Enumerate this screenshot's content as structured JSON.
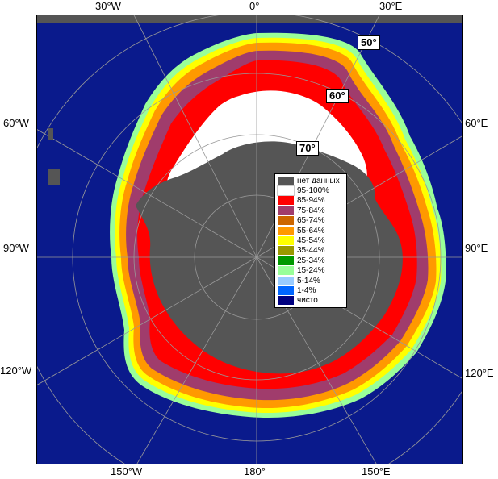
{
  "map": {
    "background_color": "#0a1a8c",
    "land_color": "#555555",
    "frame_fill": "#555555"
  },
  "longitude_labels": {
    "top_left": "30°W",
    "top_center": "0°",
    "top_right": "30°E",
    "left_upper": "60°W",
    "left_mid": "90°W",
    "left_lower": "120°W",
    "right_upper": "60°E",
    "right_mid": "90°E",
    "right_lower": "120°E",
    "bottom_left": "150°W",
    "bottom_center": "180°",
    "bottom_right": "150°E"
  },
  "latitude_labels": {
    "lat50": "50°",
    "lat60": "60°",
    "lat70": "70°"
  },
  "legend": [
    {
      "label": "нет данных",
      "color": "#555555"
    },
    {
      "label": "95-100%",
      "color": "#ffffff"
    },
    {
      "label": "85-94%",
      "color": "#ff0000"
    },
    {
      "label": "75-84%",
      "color": "#a03c6c"
    },
    {
      "label": "65-74%",
      "color": "#cc6600"
    },
    {
      "label": "55-64%",
      "color": "#ff9900"
    },
    {
      "label": "45-54%",
      "color": "#ffff00"
    },
    {
      "label": "35-44%",
      "color": "#999900"
    },
    {
      "label": "25-34%",
      "color": "#009900"
    },
    {
      "label": "15-24%",
      "color": "#99ff99"
    },
    {
      "label": "5-14%",
      "color": "#99ccff"
    },
    {
      "label": "1-4%",
      "color": "#0066ff"
    },
    {
      "label": "чисто",
      "color": "#000080"
    }
  ]
}
